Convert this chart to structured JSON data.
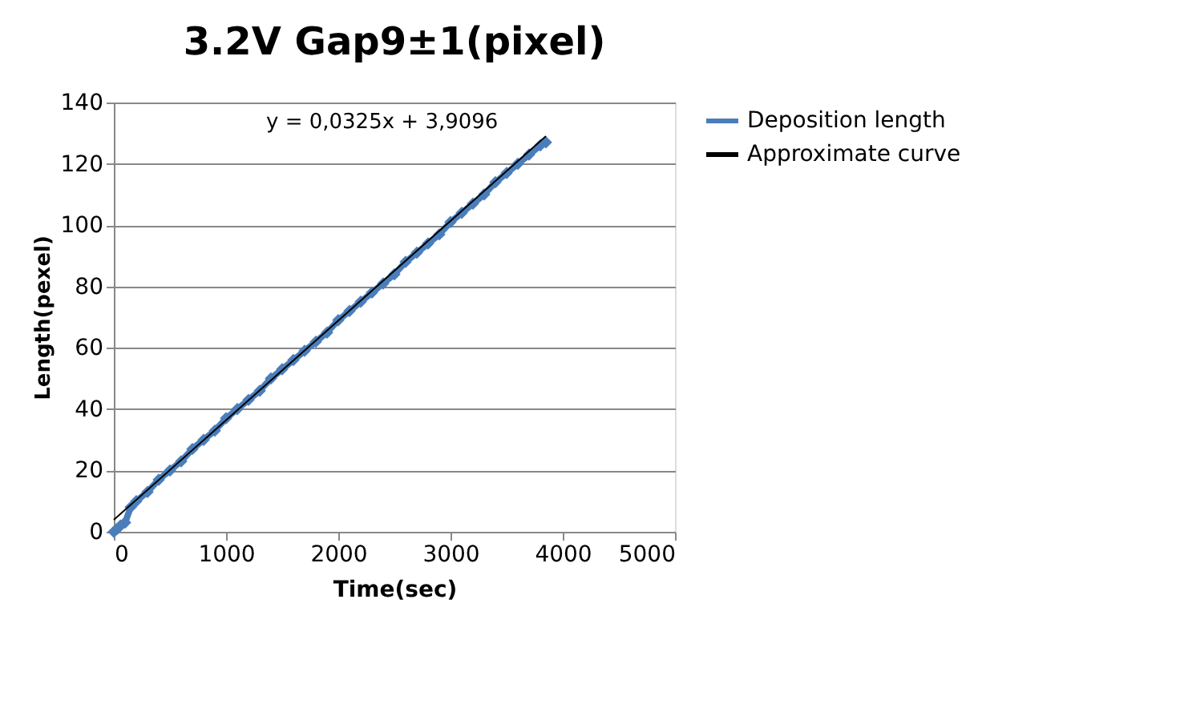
{
  "chart_data": {
    "type": "line",
    "title": "3.2V Gap9±1(pixel)",
    "xlabel": "Time(sec)",
    "ylabel": "Length(pexel)",
    "series": [
      {
        "name": "Deposition length",
        "color": "#4a7ebb",
        "marker": "diamond",
        "x": [
          0,
          30,
          60,
          100,
          150,
          200,
          300,
          400,
          500,
          600,
          700,
          800,
          900,
          1000,
          1100,
          1200,
          1300,
          1400,
          1500,
          1600,
          1700,
          1800,
          1900,
          2000,
          2100,
          2200,
          2300,
          2400,
          2500,
          2600,
          2700,
          2800,
          2900,
          3000,
          3100,
          3200,
          3300,
          3400,
          3500,
          3600,
          3700,
          3800,
          3850
        ],
        "values": [
          0,
          1,
          2,
          3,
          8,
          10,
          13,
          17,
          20,
          23,
          27,
          30,
          33,
          37,
          40,
          43,
          46,
          50,
          53,
          56,
          59,
          62,
          65,
          69,
          72,
          75,
          78,
          81,
          84,
          88,
          91,
          94,
          97,
          101,
          104,
          107,
          110,
          114,
          117,
          120,
          123,
          126,
          127
        ]
      },
      {
        "name": "Approximate curve",
        "color": "#000000",
        "marker": "none",
        "x": [
          0,
          3850
        ],
        "values": [
          3.9,
          129.0
        ]
      }
    ],
    "xlim": [
      0,
      5000
    ],
    "xticks": [
      0,
      1000,
      2000,
      3000,
      4000,
      5000
    ],
    "ylim": [
      0,
      140
    ],
    "yticks": [
      0,
      20,
      40,
      60,
      80,
      100,
      120,
      140
    ],
    "grid": "y",
    "legend": "right",
    "annotations": [
      "y = 0,0325x + 3,9096"
    ]
  }
}
